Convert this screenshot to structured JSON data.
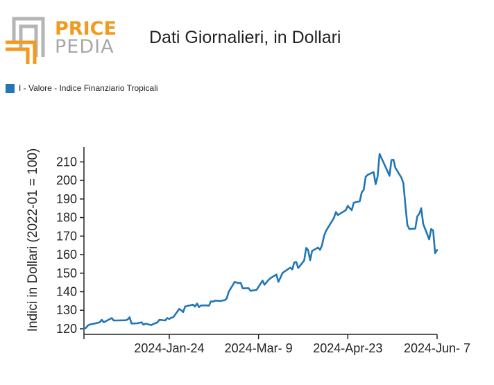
{
  "logo": {
    "word1": "PRICE",
    "word2": "PEDIA",
    "colors": {
      "orange": "#f39a1e",
      "gray": "#b5b5b5"
    }
  },
  "title": "Dati Giornalieri, in Dollari",
  "legend": {
    "label": "I - Valore - Indice Finanziario Tropicali",
    "color": "#2176b5"
  },
  "chart_data": {
    "type": "line",
    "title": "Dati Giornalieri, in Dollari",
    "ylabel": "Indici in Dollari (2022-01 = 100)",
    "xlabel": "",
    "x_range": [
      "2023-12-12",
      "2024-06-07"
    ],
    "ylim": [
      117,
      218
    ],
    "yticks": [
      120,
      130,
      140,
      150,
      160,
      170,
      180,
      190,
      200,
      210
    ],
    "xticks": [
      {
        "date": "2024-01-24",
        "label": "2024-Jan-24"
      },
      {
        "date": "2024-03-09",
        "label": "2024-Mar- 9"
      },
      {
        "date": "2024-04-23",
        "label": "2024-Apr-23"
      },
      {
        "date": "2024-06-07",
        "label": "2024-Jun- 7"
      }
    ],
    "grid": false,
    "legend_position": "top-left",
    "series": [
      {
        "name": "I - Valore - Indice Finanziario Tropicali",
        "color": "#2176b5",
        "points": [
          [
            "2023-12-12",
            120.0
          ],
          [
            "2023-12-13",
            120.5
          ],
          [
            "2023-12-14",
            121.8
          ],
          [
            "2023-12-15",
            122.3
          ],
          [
            "2023-12-18",
            123.0
          ],
          [
            "2023-12-19",
            123.2
          ],
          [
            "2023-12-20",
            123.6
          ],
          [
            "2023-12-21",
            124.8
          ],
          [
            "2023-12-22",
            123.5
          ],
          [
            "2023-12-26",
            125.8
          ],
          [
            "2023-12-27",
            124.5
          ],
          [
            "2023-12-28",
            124.5
          ],
          [
            "2024-01-02",
            124.6
          ],
          [
            "2024-01-03",
            125.0
          ],
          [
            "2024-01-04",
            126.2
          ],
          [
            "2024-01-05",
            122.8
          ],
          [
            "2024-01-08",
            123.0
          ],
          [
            "2024-01-09",
            123.2
          ],
          [
            "2024-01-10",
            123.5
          ],
          [
            "2024-01-11",
            122.2
          ],
          [
            "2024-01-12",
            122.8
          ],
          [
            "2024-01-15",
            122.0
          ],
          [
            "2024-01-16",
            122.6
          ],
          [
            "2024-01-17",
            123.0
          ],
          [
            "2024-01-18",
            123.4
          ],
          [
            "2024-01-19",
            124.8
          ],
          [
            "2024-01-22",
            124.5
          ],
          [
            "2024-01-23",
            125.8
          ],
          [
            "2024-01-24",
            125.3
          ],
          [
            "2024-01-25",
            126.0
          ],
          [
            "2024-01-26",
            126.2
          ],
          [
            "2024-01-29",
            130.7
          ],
          [
            "2024-01-30",
            130.0
          ],
          [
            "2024-01-31",
            129.0
          ],
          [
            "2024-02-01",
            132.0
          ],
          [
            "2024-02-02",
            132.3
          ],
          [
            "2024-02-05",
            133.0
          ],
          [
            "2024-02-06",
            132.0
          ],
          [
            "2024-02-07",
            133.6
          ],
          [
            "2024-02-08",
            131.7
          ],
          [
            "2024-02-09",
            132.6
          ],
          [
            "2024-02-12",
            132.6
          ],
          [
            "2024-02-13",
            132.5
          ],
          [
            "2024-02-14",
            134.8
          ],
          [
            "2024-02-15",
            134.6
          ],
          [
            "2024-02-16",
            135.2
          ],
          [
            "2024-02-19",
            135.0
          ],
          [
            "2024-02-20",
            135.3
          ],
          [
            "2024-02-21",
            135.4
          ],
          [
            "2024-02-22",
            136.5
          ],
          [
            "2024-02-23",
            140.0
          ],
          [
            "2024-02-26",
            145.3
          ],
          [
            "2024-02-27",
            144.9
          ],
          [
            "2024-02-28",
            144.6
          ],
          [
            "2024-02-29",
            144.8
          ],
          [
            "2024-03-01",
            141.8
          ],
          [
            "2024-03-04",
            141.9
          ],
          [
            "2024-03-05",
            140.4
          ],
          [
            "2024-03-06",
            140.7
          ],
          [
            "2024-03-07",
            140.8
          ],
          [
            "2024-03-08",
            141.0
          ],
          [
            "2024-03-11",
            146.0
          ],
          [
            "2024-03-12",
            143.8
          ],
          [
            "2024-03-13",
            145.0
          ],
          [
            "2024-03-14",
            146.3
          ],
          [
            "2024-03-15",
            147.3
          ],
          [
            "2024-03-18",
            149.3
          ],
          [
            "2024-03-19",
            145.3
          ],
          [
            "2024-03-20",
            147.5
          ],
          [
            "2024-03-21",
            150.0
          ],
          [
            "2024-03-22",
            150.8
          ],
          [
            "2024-03-25",
            153.0
          ],
          [
            "2024-03-26",
            152.0
          ],
          [
            "2024-03-27",
            155.8
          ],
          [
            "2024-03-28",
            156.0
          ],
          [
            "2024-03-29",
            152.8
          ],
          [
            "2024-04-01",
            156.8
          ],
          [
            "2024-04-02",
            163.6
          ],
          [
            "2024-04-03",
            162.5
          ],
          [
            "2024-04-04",
            157.0
          ],
          [
            "2024-04-05",
            162.0
          ],
          [
            "2024-04-08",
            163.8
          ],
          [
            "2024-04-09",
            162.6
          ],
          [
            "2024-04-10",
            165.0
          ],
          [
            "2024-04-11",
            170.0
          ],
          [
            "2024-04-12",
            172.8
          ],
          [
            "2024-04-15",
            178.0
          ],
          [
            "2024-04-16",
            179.8
          ],
          [
            "2024-04-17",
            183.0
          ],
          [
            "2024-04-18",
            181.3
          ],
          [
            "2024-04-19",
            182.0
          ],
          [
            "2024-04-22",
            184.0
          ],
          [
            "2024-04-23",
            186.3
          ],
          [
            "2024-04-24",
            185.0
          ],
          [
            "2024-04-25",
            184.0
          ],
          [
            "2024-04-26",
            188.0
          ],
          [
            "2024-04-29",
            188.8
          ],
          [
            "2024-04-30",
            193.5
          ],
          [
            "2024-05-01",
            195.0
          ],
          [
            "2024-05-02",
            202.0
          ],
          [
            "2024-05-03",
            203.0
          ],
          [
            "2024-05-06",
            204.5
          ],
          [
            "2024-05-07",
            198.0
          ],
          [
            "2024-05-08",
            202.0
          ],
          [
            "2024-05-09",
            214.3
          ],
          [
            "2024-05-10",
            212.0
          ],
          [
            "2024-05-13",
            205.0
          ],
          [
            "2024-05-14",
            202.5
          ],
          [
            "2024-05-15",
            211.0
          ],
          [
            "2024-05-16",
            211.2
          ],
          [
            "2024-05-17",
            206.8
          ],
          [
            "2024-05-20",
            201.5
          ],
          [
            "2024-05-21",
            198.5
          ],
          [
            "2024-05-22",
            187.0
          ],
          [
            "2024-05-23",
            176.0
          ],
          [
            "2024-05-24",
            173.8
          ],
          [
            "2024-05-27",
            174.0
          ],
          [
            "2024-05-28",
            180.6
          ],
          [
            "2024-05-29",
            182.0
          ],
          [
            "2024-05-30",
            185.0
          ],
          [
            "2024-05-31",
            176.5
          ],
          [
            "2024-06-03",
            168.2
          ],
          [
            "2024-06-04",
            173.8
          ],
          [
            "2024-06-05",
            173.0
          ],
          [
            "2024-06-06",
            160.8
          ],
          [
            "2024-06-07",
            162.5
          ]
        ]
      }
    ]
  }
}
